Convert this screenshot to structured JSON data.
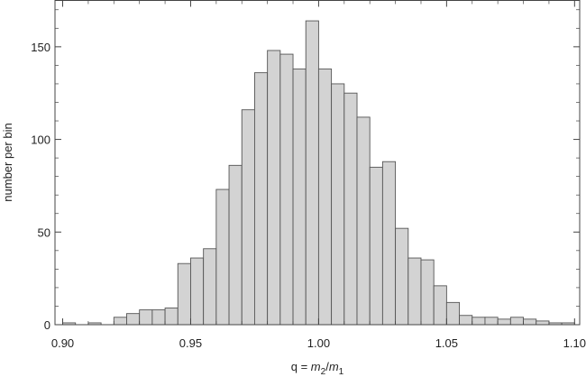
{
  "chart_data": {
    "type": "bar",
    "title": "",
    "xlabel": {
      "prefix": "q = ",
      "num": "m",
      "num_sub": "2",
      "slash": "/",
      "den": "m",
      "den_sub": "1"
    },
    "ylabel": "number per bin",
    "xlim": [
      0.897,
      1.102
    ],
    "ylim": [
      0,
      175
    ],
    "x_ticks": [
      0.9,
      0.95,
      1.0,
      1.05,
      1.1
    ],
    "x_tick_labels": [
      "0.90",
      "0.95",
      "1.00",
      "1.05",
      "1.10"
    ],
    "y_ticks": [
      0,
      50,
      100,
      150
    ],
    "y_tick_labels": [
      "0",
      "50",
      "100",
      "150"
    ],
    "bin_width": 0.005,
    "bins_start": [
      0.9,
      0.905,
      0.91,
      0.915,
      0.92,
      0.925,
      0.93,
      0.935,
      0.94,
      0.945,
      0.95,
      0.955,
      0.96,
      0.965,
      0.97,
      0.975,
      0.98,
      0.985,
      0.99,
      0.995,
      1.0,
      1.005,
      1.01,
      1.015,
      1.02,
      1.025,
      1.03,
      1.035,
      1.04,
      1.045,
      1.05,
      1.055,
      1.06,
      1.065,
      1.07,
      1.075,
      1.08,
      1.085,
      1.09,
      1.095
    ],
    "values": [
      1,
      0,
      1,
      0,
      4,
      6,
      8,
      8,
      9,
      33,
      36,
      41,
      73,
      86,
      116,
      136,
      148,
      146,
      138,
      164,
      138,
      130,
      125,
      112,
      85,
      88,
      52,
      36,
      35,
      21,
      12,
      5,
      4,
      4,
      3,
      4,
      3,
      2,
      1,
      1
    ],
    "grid": false
  }
}
